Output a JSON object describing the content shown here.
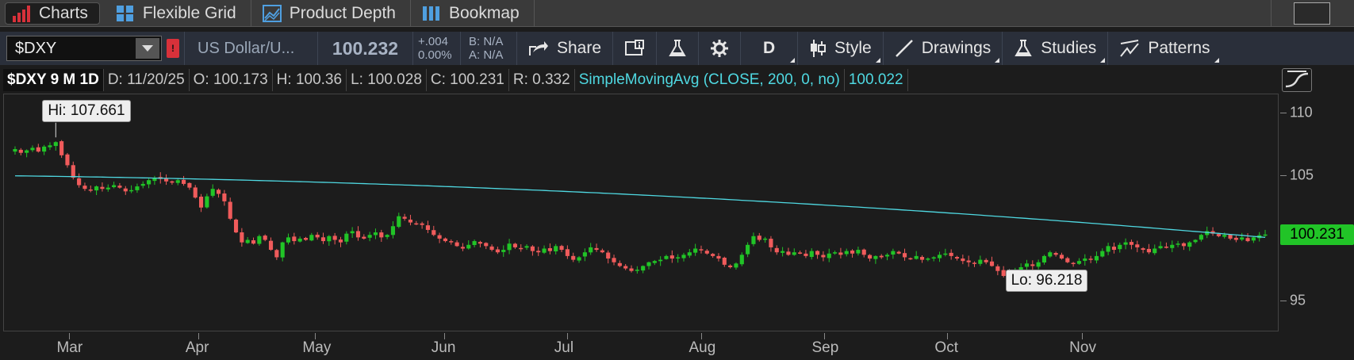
{
  "tabs": [
    {
      "label": "Charts",
      "icon": "bar-chart-icon",
      "active": true
    },
    {
      "label": "Flexible Grid",
      "icon": "grid-icon",
      "active": false
    },
    {
      "label": "Product Depth",
      "icon": "depth-icon",
      "active": false
    },
    {
      "label": "Bookmap",
      "icon": "bookmap-icon",
      "active": false
    }
  ],
  "toolbar": {
    "symbol": "$DXY",
    "description": "US Dollar/U...",
    "last": "100.232",
    "change": "+.004",
    "change_pct": "0.00%",
    "bid": "B: N/A",
    "ask": "A: N/A",
    "share_label": "Share",
    "period_label": "D",
    "style_label": "Style",
    "drawings_label": "Drawings",
    "studies_label": "Studies",
    "patterns_label": "Patterns"
  },
  "info": {
    "title": "$DXY 9 M 1D",
    "date": "D: 11/20/25",
    "open": "O: 100.173",
    "high": "H: 100.36",
    "low": "L: 100.028",
    "close": "C: 100.231",
    "range": "R: 0.332",
    "study": "SimpleMovingAvg (CLOSE, 200, 0, no)",
    "study_value": "100.022"
  },
  "colors": {
    "up": "#21c427",
    "down": "#f05b5b",
    "sma": "#4fd9e2",
    "price_tag": "#21c427"
  },
  "chart_data": {
    "type": "candlestick",
    "ylim": [
      92.5,
      111.5
    ],
    "yticks": [
      110,
      105,
      95
    ],
    "xlabels": [
      "Mar",
      "Apr",
      "May",
      "Jun",
      "Jul",
      "Aug",
      "Sep",
      "Oct",
      "Nov"
    ],
    "current_price": "100.231",
    "high_label": "Hi: 107.661",
    "low_label": "Lo: 96.218",
    "close": [
      107.1,
      106.8,
      107.0,
      107.2,
      106.9,
      107.3,
      107.4,
      107.661,
      106.6,
      105.8,
      104.8,
      104.2,
      103.9,
      103.8,
      104.1,
      103.9,
      104.0,
      104.2,
      104.0,
      103.7,
      103.8,
      104.1,
      104.3,
      104.6,
      104.8,
      104.7,
      104.5,
      104.4,
      104.6,
      104.3,
      104.0,
      103.2,
      102.4,
      103.3,
      103.9,
      103.5,
      102.9,
      101.5,
      100.4,
      99.6,
      99.8,
      99.5,
      100.1,
      99.8,
      99.0,
      98.4,
      99.6,
      100.0,
      99.7,
      99.9,
      99.8,
      100.2,
      100.0,
      99.7,
      100.1,
      99.8,
      99.6,
      100.3,
      100.5,
      100.0,
      99.9,
      100.2,
      100.4,
      100.0,
      100.2,
      100.9,
      101.7,
      101.5,
      101.2,
      101.1,
      101.0,
      100.6,
      100.2,
      99.9,
      99.7,
      99.6,
      99.3,
      99.1,
      99.4,
      99.7,
      99.5,
      99.3,
      99.0,
      98.8,
      99.0,
      99.5,
      99.2,
      99.1,
      99.3,
      98.9,
      98.8,
      99.1,
      98.9,
      99.3,
      99.0,
      98.5,
      98.2,
      98.4,
      98.8,
      99.2,
      99.0,
      98.8,
      98.3,
      98.0,
      97.7,
      97.5,
      97.3,
      97.4,
      97.7,
      98.0,
      98.1,
      98.2,
      98.5,
      98.3,
      98.4,
      98.6,
      98.8,
      99.1,
      99.0,
      98.7,
      98.5,
      98.3,
      97.8,
      97.6,
      97.9,
      98.6,
      99.4,
      100.1,
      99.8,
      99.9,
      99.2,
      98.8,
      98.9,
      98.6,
      98.8,
      98.7,
      98.5,
      98.9,
      98.6,
      98.4,
      98.7,
      98.8,
      98.6,
      98.9,
      98.7,
      99.0,
      98.6,
      98.3,
      98.5,
      98.4,
      98.6,
      98.9,
      98.7,
      98.4,
      98.3,
      98.5,
      98.2,
      98.3,
      98.4,
      98.6,
      98.7,
      98.5,
      98.3,
      98.1,
      98.0,
      97.9,
      98.2,
      98.0,
      97.7,
      97.3,
      96.9,
      96.218,
      97.3,
      97.6,
      97.9,
      97.7,
      98.0,
      98.5,
      98.8,
      98.6,
      98.3,
      98.0,
      97.9,
      98.1,
      98.3,
      98.2,
      98.5,
      98.9,
      99.3,
      99.0,
      99.4,
      99.6,
      99.4,
      99.2,
      99.0,
      98.8,
      99.1,
      99.3,
      99.2,
      99.4,
      99.5,
      99.3,
      99.6,
      99.8,
      100.2,
      100.5,
      100.3,
      100.1,
      100.2,
      99.9,
      99.8,
      100.0,
      99.7,
      100.0,
      100.173,
      100.231
    ]
  }
}
